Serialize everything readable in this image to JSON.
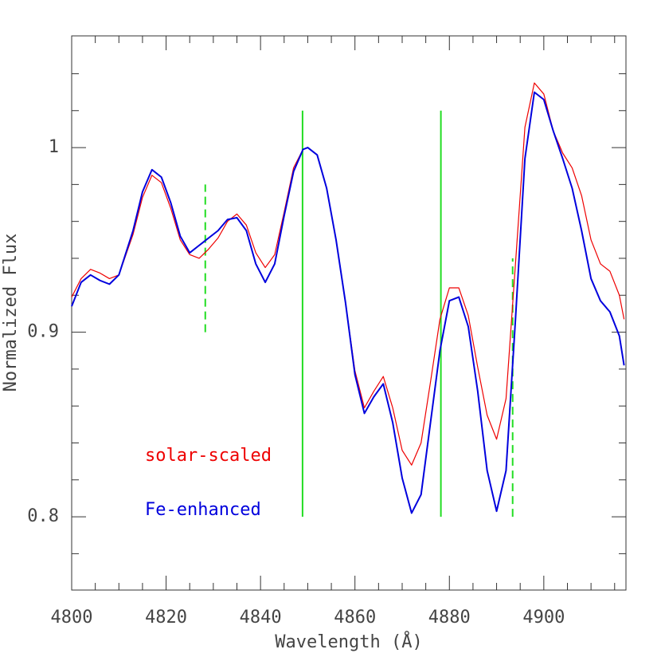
{
  "chart_data": {
    "type": "line",
    "xlabel": "Wavelength (Å)",
    "ylabel": "Normalized Flux",
    "x": [
      4800,
      4802,
      4804,
      4806,
      4808,
      4810,
      4813,
      4815,
      4817,
      4819,
      4821,
      4823,
      4825,
      4827,
      4829,
      4831,
      4833,
      4835,
      4837,
      4839,
      4841,
      4843,
      4845,
      4847,
      4849,
      4850,
      4852,
      4854,
      4856,
      4858,
      4860,
      4862,
      4864,
      4866,
      4868,
      4870,
      4872,
      4874,
      4876,
      4878,
      4880,
      4882,
      4884,
      4886,
      4888,
      4890,
      4892,
      4894,
      4896,
      4898,
      4900,
      4902,
      4904,
      4906,
      4908,
      4910,
      4912,
      4914,
      4916,
      4917
    ],
    "series": [
      {
        "name": "solar-scaled",
        "color": "#ee0000",
        "width": 1.2,
        "values": [
          0.919,
          0.929,
          0.934,
          0.932,
          0.929,
          0.931,
          0.953,
          0.973,
          0.985,
          0.981,
          0.967,
          0.95,
          0.942,
          0.94,
          0.945,
          0.951,
          0.96,
          0.964,
          0.958,
          0.943,
          0.935,
          0.942,
          0.965,
          0.989,
          0.999,
          1.0,
          0.996,
          0.978,
          0.95,
          0.916,
          0.879,
          0.859,
          0.868,
          0.876,
          0.859,
          0.836,
          0.828,
          0.84,
          0.873,
          0.907,
          0.924,
          0.924,
          0.909,
          0.881,
          0.855,
          0.842,
          0.864,
          0.937,
          1.011,
          1.035,
          1.029,
          1.009,
          0.997,
          0.989,
          0.974,
          0.95,
          0.937,
          0.933,
          0.92,
          0.907
        ]
      },
      {
        "name": "Fe-enhanced",
        "color": "#0000dd",
        "width": 2,
        "values": [
          0.914,
          0.927,
          0.931,
          0.928,
          0.926,
          0.931,
          0.955,
          0.976,
          0.988,
          0.984,
          0.97,
          0.952,
          0.943,
          0.947,
          0.951,
          0.955,
          0.961,
          0.962,
          0.955,
          0.937,
          0.927,
          0.937,
          0.963,
          0.987,
          0.999,
          1.0,
          0.996,
          0.978,
          0.95,
          0.916,
          0.877,
          0.856,
          0.865,
          0.872,
          0.851,
          0.821,
          0.802,
          0.812,
          0.851,
          0.89,
          0.917,
          0.919,
          0.903,
          0.868,
          0.825,
          0.803,
          0.825,
          0.907,
          0.994,
          1.03,
          1.026,
          1.009,
          0.994,
          0.978,
          0.955,
          0.929,
          0.917,
          0.911,
          0.898,
          0.882
        ]
      }
    ],
    "vlines": [
      {
        "x": 4828.3,
        "ymin": 0.9,
        "ymax": 0.98,
        "style": "dashed",
        "color": "#22dd22"
      },
      {
        "x": 4848.9,
        "ymin": 0.8,
        "ymax": 1.02,
        "style": "solid",
        "color": "#22dd22"
      },
      {
        "x": 4878.2,
        "ymin": 0.8,
        "ymax": 1.02,
        "style": "solid",
        "color": "#22dd22"
      },
      {
        "x": 4893.4,
        "ymin": 0.8,
        "ymax": 0.94,
        "style": "dashed",
        "color": "#22dd22"
      }
    ],
    "xlim": [
      4800,
      4917.4
    ],
    "ylim": [
      0.7603,
      1.0605
    ],
    "xticks": [
      4800,
      4820,
      4840,
      4860,
      4880,
      4900
    ],
    "xminorticks": [
      4805,
      4810,
      4815,
      4825,
      4830,
      4835,
      4845,
      4850,
      4855,
      4865,
      4870,
      4875,
      4885,
      4890,
      4895,
      4905,
      4910,
      4915
    ],
    "yticks": [
      0.8,
      0.9,
      1
    ],
    "yminorticks": [
      0.78,
      0.82,
      0.84,
      0.86,
      0.88,
      0.92,
      0.94,
      0.96,
      0.98,
      1.02,
      1.04
    ]
  }
}
